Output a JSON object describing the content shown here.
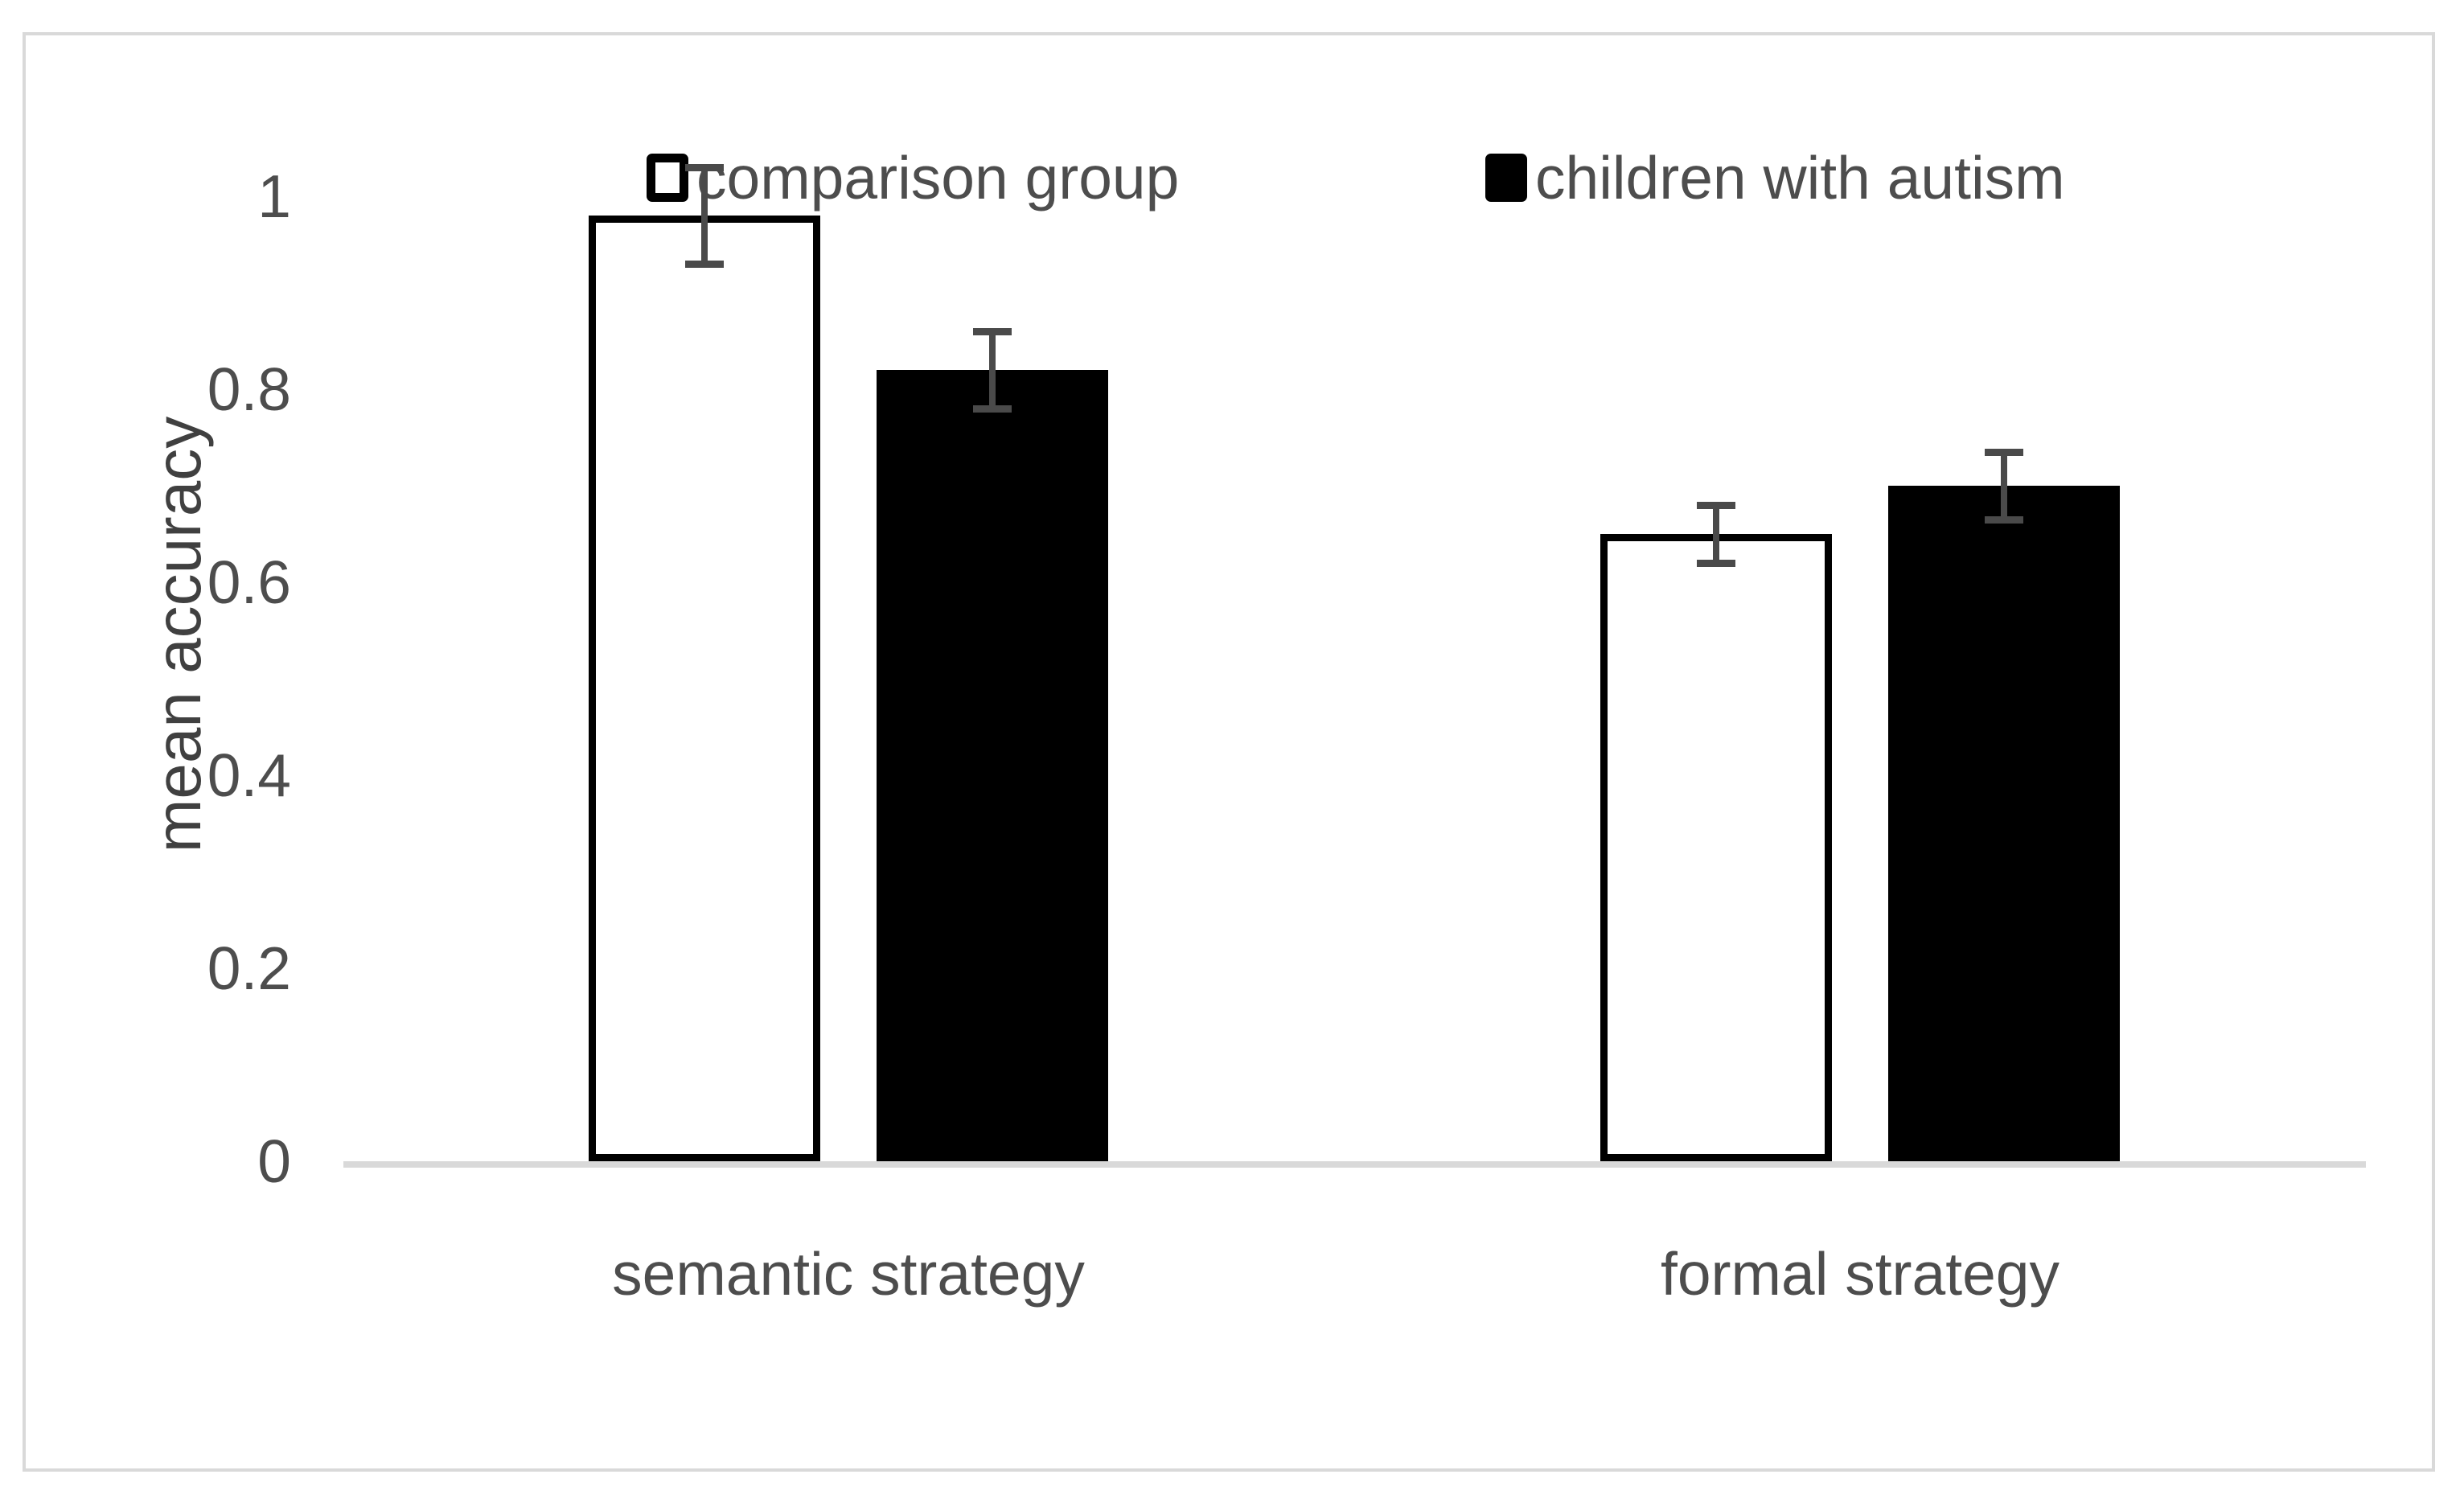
{
  "figure": {
    "background_color": "#ffffff",
    "frame_border_color": "#d9d9d9"
  },
  "chart_data": {
    "type": "bar",
    "title": "",
    "xlabel": "",
    "ylabel": "mean accuracy",
    "categories": [
      "semantic strategy",
      "formal strategy"
    ],
    "series": [
      {
        "name": "comparison group",
        "fill": "#ffffff",
        "border": "#000000",
        "values": [
          0.98,
          0.65
        ],
        "error_bars": [
          0.05,
          0.03
        ]
      },
      {
        "name": "children with autism",
        "fill": "#000000",
        "border": "#000000",
        "values": [
          0.82,
          0.7
        ],
        "error_bars": [
          0.04,
          0.035
        ]
      }
    ],
    "yticks": [
      0,
      0.2,
      0.4,
      0.6,
      0.8,
      1
    ],
    "ytick_labels": [
      "0",
      "0.2",
      "0.4",
      "0.6",
      "0.8",
      "1"
    ],
    "ylim": [
      0,
      1.05
    ],
    "grid": false,
    "legend_position": "top",
    "axis_line_color": "#d9d9d9",
    "error_bar_color": "#4a4a4a",
    "tick_label_color": "#4d4d4d"
  }
}
